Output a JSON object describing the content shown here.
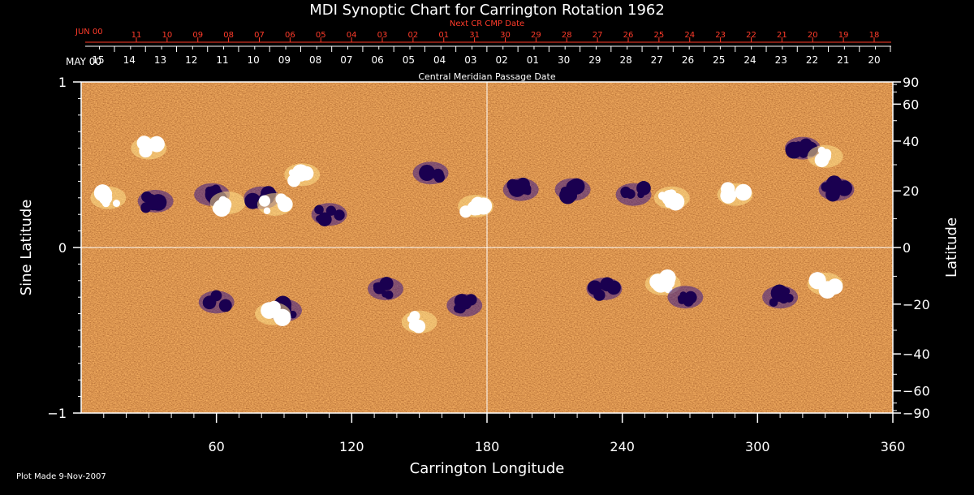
{
  "chart_data": {
    "type": "heatmap",
    "title": "MDI Synoptic Chart for Carrington Rotation 1962",
    "xlabel": "Carrington Longitude",
    "ylabel_left": "Sine Latitude",
    "ylabel_right": "Latitude",
    "xlim": [
      0,
      360
    ],
    "ylim": [
      -1,
      1
    ],
    "x_ticks": [
      60,
      120,
      180,
      240,
      300,
      360
    ],
    "y_ticks_left": [
      {
        "v": 1,
        "label": "1"
      },
      {
        "v": 0,
        "label": "0"
      },
      {
        "v": -1,
        "label": "−1"
      }
    ],
    "y_ticks_right": [
      {
        "deg": 90,
        "label": "90"
      },
      {
        "deg": 60,
        "label": "60"
      },
      {
        "deg": 40,
        "label": "40"
      },
      {
        "deg": 20,
        "label": "20"
      },
      {
        "deg": 0,
        "label": "0"
      },
      {
        "deg": -20,
        "label": "−20"
      },
      {
        "deg": -40,
        "label": "−40"
      },
      {
        "deg": -60,
        "label": "−60"
      },
      {
        "deg": -90,
        "label": "−90"
      }
    ],
    "cmp_axis": {
      "title": "Central Meridian Passage Date",
      "start_label": "MAY 00",
      "dates": [
        "15",
        "14",
        "13",
        "12",
        "11",
        "10",
        "09",
        "08",
        "07",
        "06",
        "05",
        "04",
        "03",
        "02",
        "01",
        "30",
        "29",
        "28",
        "27",
        "26",
        "25",
        "24",
        "23",
        "22",
        "21",
        "20"
      ]
    },
    "next_cmp_axis": {
      "title": "Next CR CMP Date",
      "start_label": "JUN 00",
      "dates": [
        "11",
        "10",
        "09",
        "08",
        "07",
        "06",
        "05",
        "04",
        "03",
        "02",
        "01",
        "31",
        "30",
        "29",
        "28",
        "27",
        "26",
        "25",
        "24",
        "23",
        "22",
        "21",
        "20",
        "19",
        "18"
      ]
    },
    "active_regions": [
      {
        "lon": 12,
        "lat": 0.3,
        "polarity": "positive"
      },
      {
        "lon": 30,
        "lat": 0.6,
        "polarity": "positive"
      },
      {
        "lon": 33,
        "lat": 0.28,
        "polarity": "negative"
      },
      {
        "lon": 58,
        "lat": 0.32,
        "polarity": "negative"
      },
      {
        "lon": 65,
        "lat": 0.27,
        "polarity": "positive"
      },
      {
        "lon": 80,
        "lat": 0.3,
        "polarity": "negative"
      },
      {
        "lon": 86,
        "lat": 0.26,
        "polarity": "positive"
      },
      {
        "lon": 98,
        "lat": 0.44,
        "polarity": "positive"
      },
      {
        "lon": 110,
        "lat": 0.2,
        "polarity": "negative"
      },
      {
        "lon": 155,
        "lat": 0.45,
        "polarity": "negative"
      },
      {
        "lon": 175,
        "lat": 0.25,
        "polarity": "positive"
      },
      {
        "lon": 195,
        "lat": 0.35,
        "polarity": "negative"
      },
      {
        "lon": 218,
        "lat": 0.35,
        "polarity": "negative"
      },
      {
        "lon": 245,
        "lat": 0.32,
        "polarity": "negative"
      },
      {
        "lon": 262,
        "lat": 0.3,
        "polarity": "positive"
      },
      {
        "lon": 290,
        "lat": 0.32,
        "polarity": "positive"
      },
      {
        "lon": 320,
        "lat": 0.6,
        "polarity": "negative"
      },
      {
        "lon": 330,
        "lat": 0.55,
        "polarity": "positive"
      },
      {
        "lon": 335,
        "lat": 0.35,
        "polarity": "negative"
      },
      {
        "lon": 60,
        "lat": -0.33,
        "polarity": "negative"
      },
      {
        "lon": 90,
        "lat": -0.38,
        "polarity": "negative"
      },
      {
        "lon": 85,
        "lat": -0.4,
        "polarity": "positive"
      },
      {
        "lon": 135,
        "lat": -0.25,
        "polarity": "negative"
      },
      {
        "lon": 150,
        "lat": -0.45,
        "polarity": "positive"
      },
      {
        "lon": 170,
        "lat": -0.35,
        "polarity": "negative"
      },
      {
        "lon": 232,
        "lat": -0.25,
        "polarity": "negative"
      },
      {
        "lon": 258,
        "lat": -0.22,
        "polarity": "positive"
      },
      {
        "lon": 268,
        "lat": -0.3,
        "polarity": "negative"
      },
      {
        "lon": 310,
        "lat": -0.3,
        "polarity": "negative"
      },
      {
        "lon": 330,
        "lat": -0.22,
        "polarity": "positive"
      }
    ],
    "colors": {
      "background_field": "#e8601a",
      "positive": "#ffffff",
      "negative": "#1a0050",
      "axes": "#ffffff",
      "cmp_text": "#ffffff",
      "next_cmp_text": "#ff3b2a"
    }
  },
  "footer": {
    "plot_made": "Plot Made  9-Nov-2007"
  }
}
